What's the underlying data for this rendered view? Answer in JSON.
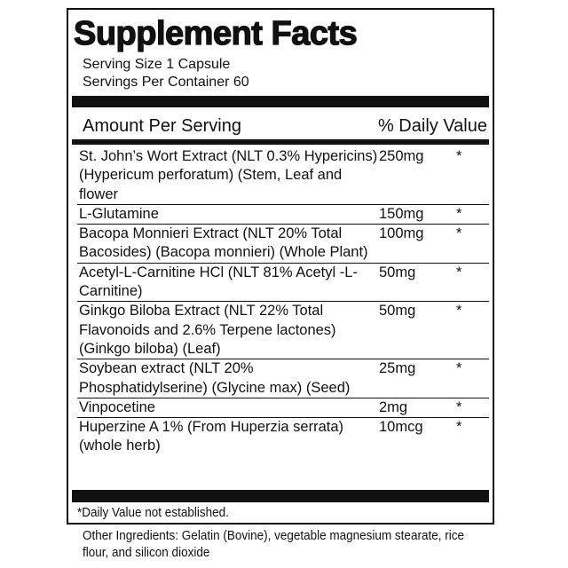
{
  "title": "Supplement Facts",
  "serving_size": "Serving Size 1 Capsule",
  "servings_per_container": "Servings Per Container 60",
  "header": {
    "amount": "Amount Per Serving",
    "daily_value": "% Daily Value"
  },
  "ingredients": [
    {
      "name": "St. John’s Wort Extract (NLT 0.3% Hypericins) (Hypericum perforatum) (Stem, Leaf and flower",
      "amount": "250mg",
      "dv": "*"
    },
    {
      "name": "L-Glutamine",
      "amount": "150mg",
      "dv": "*"
    },
    {
      "name": "Bacopa Monnieri Extract (NLT 20% Total Bacosides) (Bacopa monnieri) (Whole Plant)",
      "amount": "100mg",
      "dv": "*"
    },
    {
      "name": "Acetyl-L-Carnitine HCl (NLT 81% Acetyl -L-Carnitine)",
      "amount": "50mg",
      "dv": "*"
    },
    {
      "name": "Ginkgo Biloba Extract (NLT 22% Total Flavonoids and 2.6% Terpene lactones) (Ginkgo biloba) (Leaf)",
      "amount": "50mg",
      "dv": "*"
    },
    {
      "name": "Soybean extract (NLT 20% Phosphatidylserine) (Glycine max) (Seed)",
      "amount": "25mg",
      "dv": "*"
    },
    {
      "name": "Vinpocetine",
      "amount": "2mg",
      "dv": "*"
    },
    {
      "name": "Huperzine A 1% (From Huperzia serrata) (whole herb)",
      "amount": "10mcg",
      "dv": "*"
    }
  ],
  "footnote": "*Daily Value not established.",
  "other_ingredients": "Other Ingredients: Gelatin (Bovine), vegetable magnesium stearate, rice flour, and silicon dioxide"
}
